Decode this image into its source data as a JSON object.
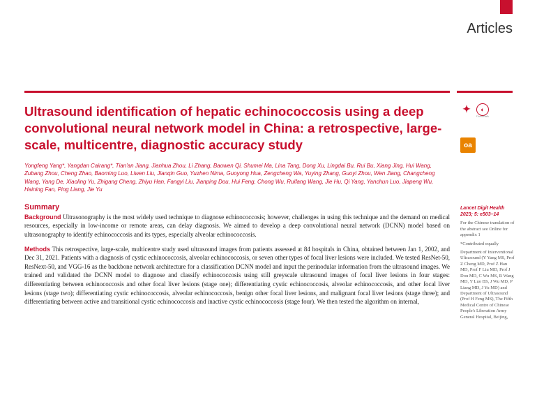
{
  "header": {
    "section_label": "Articles",
    "tab_color": "#c8102e"
  },
  "title": "Ultrasound identification of hepatic echinococcosis using a deep convolutional neural network model in China: a retrospective, large-scale, multicentre, diagnostic accuracy study",
  "authors": "Yongfeng Yang*, Yangdan Cairang*, Tian'an Jiang, Jianhua Zhou, Li Zhang, Baowen Qi, Shumei Ma, Lina Tang, Dong Xu, Lingdai Bu, Rui Bu, Xiang Jing, Hui Wang, Zubang Zhou, Cheng Zhao, Baoming Luo, Liwen Liu, Jianqin Guo, Yuzhen Nima, Guoyong Hua, Zengcheng Wa, Yuying Zhang, Guoyi Zhou, Wen Jiang, Changcheng Wang, Yang De, Xiaoling Yu, Zhigang Cheng, Zhiyu Han, Fangyi Liu, Jianping Dou, Hui Feng, Chong Wu, Ruifang Wang, Jie Hu, Qi Yang, Yanchun Luo, Jiapeng Wu, Haining Fan, Ping Liang, Jie Yu",
  "summary": {
    "heading": "Summary",
    "background": {
      "label": "Background",
      "text": "Ultrasonography is the most widely used technique to diagnose echinococcosis; however, challenges in using this technique and the demand on medical resources, especially in low-income or remote areas, can delay diagnosis. We aimed to develop a deep convolutional neural network (DCNN) model based on ultrasonography to identify echinococcosis and its types, especially alveolar echinococcosis."
    },
    "methods": {
      "label": "Methods",
      "text": "This retrospective, large-scale, multicentre study used ultrasound images from patients assessed at 84 hospitals in China, obtained between Jan 1, 2002, and Dec 31, 2021. Patients with a diagnosis of cystic echinococcosis, alveolar echinococcosis, or seven other types of focal liver lesions were included. We tested ResNet-50, ResNext-50, and VGG-16 as the backbone network architecture for a classification DCNN model and input the perinodular information from the ultrasound images. We trained and validated the DCNN model to diagnose and classify echinococcosis using still greyscale ultrasound images of focal liver lesions in four stages: differentiating between echinococcosis and other focal liver lesions (stage one); differentiating cystic echinococcosis, alveolar echinococcosis, and other focal liver lesions (stage two); differentiating cystic echinococcosis, alveolar echinococcosis, benign other focal liver lesions, and malignant focal liver lesions (stage three); and differentiating between active and transitional cystic echinococcosis and inactive cystic echinococcosis (stage four). We then tested the algorithm on internal,"
    }
  },
  "sidebar": {
    "oa_label": "oa",
    "citation": "Lancet Digit Health 2023; 5: e503–14",
    "chinese_note": "For the Chinese translation of the abstract see Online for appendix 1",
    "contributed": "*Contributed equally",
    "affiliations": "Department of Interventional Ultrasound (Y Yang MS, Prof Z Cheng MD, Prof Z Han MD, Prof F Liu MD, Prof J Dou MD, C Wu MS, R Wang MD, Y Luo BS, J Wu MD, P Liang MD, J Yu MD) and Department of Ultrasound (Prof H Feng MS), The Fifth Medical Centre of Chinese People's Liberation Army General Hospital, Beijing,",
    "crossmark_label": "CrossMark"
  },
  "colors": {
    "brand_red": "#c8102e",
    "oa_orange": "#e98300",
    "text_dark": "#222222",
    "text_gray": "#555555",
    "background": "#ffffff"
  },
  "typography": {
    "title_fontsize": 18.5,
    "body_fontsize": 9,
    "authors_fontsize": 8,
    "sidebar_fontsize": 6.5
  }
}
